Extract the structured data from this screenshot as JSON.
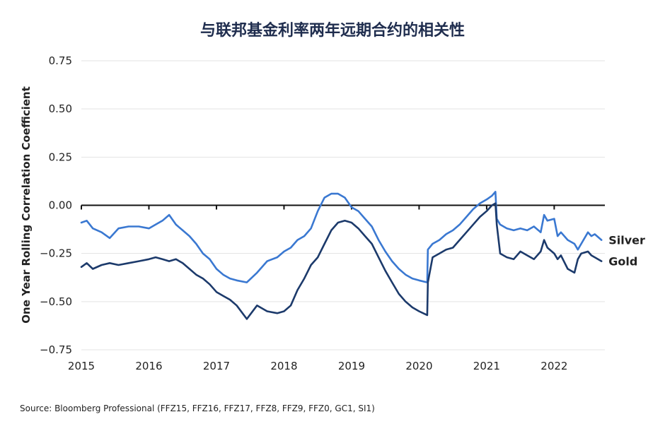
{
  "chart_data": {
    "type": "line",
    "title": "与联邦基金利率两年远期合约的相关性",
    "ylabel": "One Year Rolling Correlation Coefficient",
    "xlabel": "",
    "xlim": [
      2015.0,
      2022.75
    ],
    "ylim": [
      -0.75,
      0.75
    ],
    "x_ticks": [
      "2015",
      "2016",
      "2017",
      "2018",
      "2019",
      "2020",
      "2021",
      "2022"
    ],
    "y_ticks": [
      "0.75",
      "0.50",
      "0.25",
      "0.00",
      "−0.25",
      "−0.50",
      "−0.75"
    ],
    "grid": true,
    "source": "Source: Bloomberg Professional (FFZ15, FFZ16, FFZ17, FFZ8, FFZ9, FFZ0, GC1, SI1)",
    "series": [
      {
        "name": "Silver",
        "color": "#3a78d1",
        "x": [
          2015.0,
          2015.08,
          2015.17,
          2015.3,
          2015.42,
          2015.55,
          2015.7,
          2015.85,
          2016.0,
          2016.1,
          2016.2,
          2016.3,
          2016.4,
          2016.5,
          2016.6,
          2016.7,
          2016.8,
          2016.9,
          2017.0,
          2017.1,
          2017.2,
          2017.3,
          2017.45,
          2017.6,
          2017.75,
          2017.9,
          2018.0,
          2018.1,
          2018.2,
          2018.3,
          2018.4,
          2018.5,
          2018.6,
          2018.7,
          2018.8,
          2018.9,
          2019.0,
          2019.1,
          2019.2,
          2019.3,
          2019.4,
          2019.5,
          2019.6,
          2019.7,
          2019.8,
          2019.9,
          2020.0,
          2020.12,
          2020.13,
          2020.2,
          2020.3,
          2020.4,
          2020.5,
          2020.6,
          2020.7,
          2020.8,
          2020.9,
          2021.0,
          2021.08,
          2021.13,
          2021.15,
          2021.2,
          2021.3,
          2021.4,
          2021.5,
          2021.6,
          2021.7,
          2021.8,
          2021.85,
          2021.9,
          2022.0,
          2022.05,
          2022.1,
          2022.2,
          2022.3,
          2022.35,
          2022.4,
          2022.5,
          2022.55,
          2022.6,
          2022.7
        ],
        "values": [
          -0.09,
          -0.08,
          -0.12,
          -0.14,
          -0.17,
          -0.12,
          -0.11,
          -0.11,
          -0.12,
          -0.1,
          -0.08,
          -0.05,
          -0.1,
          -0.13,
          -0.16,
          -0.2,
          -0.25,
          -0.28,
          -0.33,
          -0.36,
          -0.38,
          -0.39,
          -0.4,
          -0.35,
          -0.29,
          -0.27,
          -0.24,
          -0.22,
          -0.18,
          -0.16,
          -0.12,
          -0.03,
          0.04,
          0.06,
          0.06,
          0.04,
          -0.01,
          -0.03,
          -0.07,
          -0.11,
          -0.18,
          -0.24,
          -0.29,
          -0.33,
          -0.36,
          -0.38,
          -0.39,
          -0.4,
          -0.23,
          -0.2,
          -0.18,
          -0.15,
          -0.13,
          -0.1,
          -0.06,
          -0.02,
          0.01,
          0.03,
          0.05,
          0.07,
          -0.07,
          -0.1,
          -0.12,
          -0.13,
          -0.12,
          -0.13,
          -0.11,
          -0.14,
          -0.05,
          -0.08,
          -0.07,
          -0.16,
          -0.14,
          -0.18,
          -0.2,
          -0.23,
          -0.2,
          -0.14,
          -0.16,
          -0.15,
          -0.18
        ]
      },
      {
        "name": "Gold",
        "color": "#1c3a6b",
        "x": [
          2015.0,
          2015.08,
          2015.17,
          2015.3,
          2015.42,
          2015.55,
          2015.7,
          2015.85,
          2016.0,
          2016.1,
          2016.2,
          2016.3,
          2016.4,
          2016.5,
          2016.6,
          2016.7,
          2016.8,
          2016.9,
          2017.0,
          2017.1,
          2017.2,
          2017.3,
          2017.45,
          2017.6,
          2017.75,
          2017.9,
          2018.0,
          2018.1,
          2018.2,
          2018.3,
          2018.4,
          2018.5,
          2018.6,
          2018.7,
          2018.8,
          2018.9,
          2019.0,
          2019.1,
          2019.2,
          2019.3,
          2019.4,
          2019.5,
          2019.6,
          2019.7,
          2019.8,
          2019.9,
          2020.0,
          2020.12,
          2020.13,
          2020.2,
          2020.3,
          2020.4,
          2020.5,
          2020.6,
          2020.7,
          2020.8,
          2020.9,
          2021.0,
          2021.08,
          2021.13,
          2021.15,
          2021.2,
          2021.3,
          2021.4,
          2021.5,
          2021.6,
          2021.7,
          2021.8,
          2021.85,
          2021.9,
          2022.0,
          2022.05,
          2022.1,
          2022.2,
          2022.3,
          2022.35,
          2022.4,
          2022.5,
          2022.55,
          2022.6,
          2022.7
        ],
        "values": [
          -0.32,
          -0.3,
          -0.33,
          -0.31,
          -0.3,
          -0.31,
          -0.3,
          -0.29,
          -0.28,
          -0.27,
          -0.28,
          -0.29,
          -0.28,
          -0.3,
          -0.33,
          -0.36,
          -0.38,
          -0.41,
          -0.45,
          -0.47,
          -0.49,
          -0.52,
          -0.59,
          -0.52,
          -0.55,
          -0.56,
          -0.55,
          -0.52,
          -0.44,
          -0.38,
          -0.31,
          -0.27,
          -0.2,
          -0.13,
          -0.09,
          -0.08,
          -0.09,
          -0.12,
          -0.16,
          -0.2,
          -0.27,
          -0.34,
          -0.4,
          -0.46,
          -0.5,
          -0.53,
          -0.55,
          -0.57,
          -0.4,
          -0.27,
          -0.25,
          -0.23,
          -0.22,
          -0.18,
          -0.14,
          -0.1,
          -0.06,
          -0.03,
          0.0,
          0.01,
          -0.1,
          -0.25,
          -0.27,
          -0.28,
          -0.24,
          -0.26,
          -0.28,
          -0.24,
          -0.18,
          -0.22,
          -0.25,
          -0.28,
          -0.26,
          -0.33,
          -0.35,
          -0.28,
          -0.25,
          -0.24,
          -0.26,
          -0.27,
          -0.29
        ]
      }
    ]
  }
}
